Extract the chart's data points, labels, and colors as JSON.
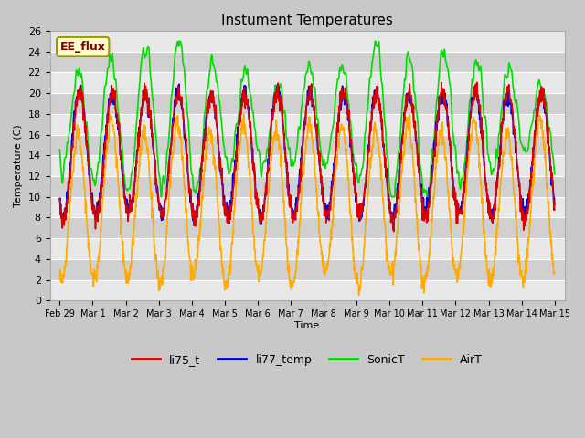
{
  "title": "Instument Temperatures",
  "ylabel": "Temperature (C)",
  "xlabel": "Time",
  "ylim": [
    0,
    26
  ],
  "yticks": [
    0,
    2,
    4,
    6,
    8,
    10,
    12,
    14,
    16,
    18,
    20,
    22,
    24,
    26
  ],
  "xtick_labels": [
    "Feb 29",
    "Mar 1",
    "Mar 2",
    "Mar 3",
    "Mar 4",
    "Mar 5",
    "Mar 6",
    "Mar 7",
    "Mar 8",
    "Mar 9",
    "Mar 10",
    "Mar 11",
    "Mar 12",
    "Mar 13",
    "Mar 14",
    "Mar 15"
  ],
  "xtick_positions": [
    0,
    1,
    2,
    3,
    4,
    5,
    6,
    7,
    8,
    9,
    10,
    11,
    12,
    13,
    14,
    15
  ],
  "series_colors": {
    "li75_t": "#dd0000",
    "li77_temp": "#0000dd",
    "SonicT": "#00dd00",
    "AirT": "#ffaa00"
  },
  "annotation_text": "EE_flux",
  "band_colors": [
    "#e8e8e8",
    "#d0d0d0"
  ],
  "grid_color": "#ffffff",
  "fig_bg": "#c8c8c8",
  "linewidth": 1.2,
  "n_days": 15,
  "pts_per_day": 96,
  "seed": 42
}
